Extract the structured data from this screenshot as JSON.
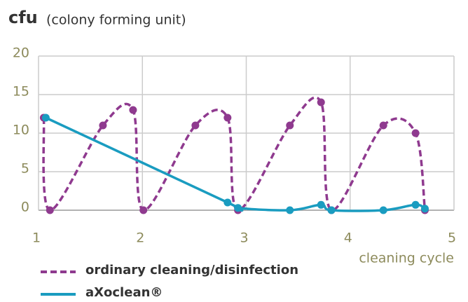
{
  "chart_data": {
    "type": "line",
    "title": "cfu",
    "subtitle": "(colony forming unit)",
    "x_label": "cleaning cycle",
    "xlim": [
      1,
      5
    ],
    "xticks": [
      1,
      2,
      3,
      4,
      5
    ],
    "ylim": [
      0,
      20
    ],
    "yticks": [
      0,
      5,
      10,
      15,
      20
    ],
    "grid": true,
    "series": [
      {
        "name": "ordinary cleaning/disinfection",
        "color": "#8f3a8f",
        "style": "dashed",
        "x": [
          1.05,
          1.11,
          1.62,
          1.91,
          2.01,
          2.51,
          2.82,
          2.92,
          3.42,
          3.72,
          3.82,
          4.32,
          4.63,
          4.72
        ],
        "values": [
          12,
          0,
          11,
          13,
          0,
          11,
          12,
          0,
          11,
          14,
          0,
          11,
          10,
          0
        ]
      },
      {
        "name": "aXoclean®",
        "color": "#1a9cc0",
        "style": "solid",
        "x": [
          1.07,
          2.82,
          2.92,
          3.42,
          3.72,
          3.82,
          4.32,
          4.63,
          4.72
        ],
        "values": [
          12,
          1,
          0.3,
          0,
          0.7,
          0,
          0,
          0.7,
          0.2
        ]
      }
    ]
  }
}
